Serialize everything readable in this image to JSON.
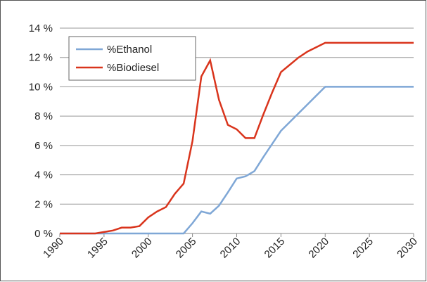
{
  "chart_data": {
    "type": "line",
    "x": [
      1990,
      1991,
      1992,
      1993,
      1994,
      1995,
      1996,
      1997,
      1998,
      1999,
      2000,
      2001,
      2002,
      2003,
      2004,
      2005,
      2006,
      2007,
      2008,
      2009,
      2010,
      2011,
      2012,
      2013,
      2014,
      2015,
      2016,
      2017,
      2018,
      2019,
      2020,
      2021,
      2022,
      2023,
      2024,
      2025,
      2026,
      2027,
      2028,
      2029,
      2030
    ],
    "series": [
      {
        "name": "%Ethanol",
        "color": "#7fa7d6",
        "values": [
          0,
          0,
          0,
          0,
          0,
          0,
          0,
          0,
          0,
          0,
          0,
          0,
          0,
          0,
          0,
          0.7,
          1.5,
          1.35,
          1.9,
          2.8,
          3.75,
          3.9,
          4.25,
          5.2,
          6.1,
          7.0,
          7.6,
          8.2,
          8.8,
          9.4,
          10,
          10,
          10,
          10,
          10,
          10,
          10,
          10,
          10,
          10,
          10
        ]
      },
      {
        "name": "%Biodiesel",
        "color": "#d9341c",
        "values": [
          0,
          0,
          0,
          0,
          0,
          0.1,
          0.2,
          0.4,
          0.4,
          0.5,
          1.1,
          1.5,
          1.8,
          2.7,
          3.4,
          6.3,
          10.7,
          11.8,
          9.1,
          7.4,
          7.1,
          6.5,
          6.5,
          8.1,
          9.6,
          11.0,
          11.5,
          12.0,
          12.4,
          12.7,
          13,
          13,
          13,
          13,
          13,
          13,
          13,
          13,
          13,
          13,
          13
        ]
      }
    ],
    "xlim": [
      1990,
      2030
    ],
    "xticks": [
      1990,
      1995,
      2000,
      2005,
      2010,
      2015,
      2020,
      2025,
      2030
    ],
    "ylim": [
      0,
      14
    ],
    "yticks": [
      {
        "value": 0,
        "label": "0 %"
      },
      {
        "value": 2,
        "label": "2 %"
      },
      {
        "value": 4,
        "label": "4 %"
      },
      {
        "value": 6,
        "label": "6 %"
      },
      {
        "value": 8,
        "label": "8 %"
      },
      {
        "value": 10,
        "label": "10 %"
      },
      {
        "value": 12,
        "label": "12 %"
      },
      {
        "value": 14,
        "label": "14 %"
      }
    ],
    "grid": true,
    "legend": "upper left"
  }
}
